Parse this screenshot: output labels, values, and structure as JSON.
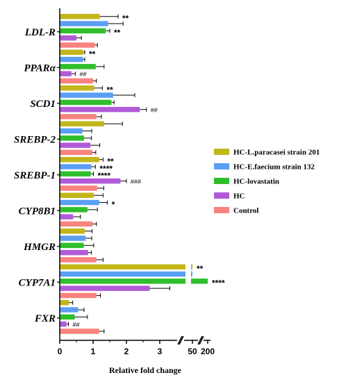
{
  "chart_data": {
    "type": "bar",
    "orientation": "horizontal",
    "xlabel": "Relative fold change",
    "x_ticks": [
      "0",
      "1",
      "2",
      "3",
      "50",
      "200"
    ],
    "x_axis_break": "between 3 and 50, and between 50 and 200",
    "legend_position": "right",
    "categories": [
      "LDL-R",
      "PPARα",
      "SCD1",
      "SREBP-2",
      "SREBP-1",
      "CYP8B1",
      "HMGR",
      "CYP7A1",
      "FXR"
    ],
    "series": [
      {
        "name": "HC-L.paracasei strain 201",
        "color": "#c3b61b",
        "values": [
          1.2,
          0.7,
          1.03,
          1.33,
          1.18,
          1.02,
          0.75,
          50,
          0.27
        ],
        "errors": [
          0.55,
          0.05,
          0.25,
          0.55,
          0.12,
          0.28,
          0.22,
          0,
          0.12
        ],
        "significance": [
          "**",
          "**",
          "**",
          "",
          "**",
          "",
          "",
          "**",
          ""
        ]
      },
      {
        "name": "HC-E.faecium strain 132",
        "color": "#5b9ff3",
        "values": [
          1.45,
          0.7,
          1.6,
          0.68,
          0.95,
          1.18,
          0.78,
          50,
          0.55
        ],
        "errors": [
          0.45,
          0.05,
          0.65,
          0.28,
          0.12,
          0.25,
          0.18,
          0,
          0.18
        ],
        "significance": [
          "",
          "",
          "",
          "",
          "****",
          "*",
          "",
          "",
          ""
        ]
      },
      {
        "name": "HC-lovastatin",
        "color": "#2fbf2c",
        "values": [
          1.38,
          1.08,
          1.55,
          0.73,
          0.93,
          0.83,
          0.72,
          200,
          0.45
        ],
        "errors": [
          0.12,
          0.25,
          0.08,
          0.22,
          0.08,
          0.3,
          0.3,
          0,
          0.38
        ],
        "significance": [
          "**",
          "",
          "",
          "",
          "****",
          "",
          "",
          "****",
          ""
        ]
      },
      {
        "name": "HC",
        "color": "#b25bd9",
        "values": [
          0.5,
          0.35,
          2.4,
          0.92,
          1.82,
          0.4,
          0.85,
          2.7,
          0.2
        ],
        "errors": [
          0.15,
          0.12,
          0.2,
          0.28,
          0.18,
          0.22,
          0.1,
          0.6,
          0.06
        ],
        "significance": [
          "",
          "##",
          "##",
          "",
          "###",
          "",
          "",
          "",
          "##"
        ]
      },
      {
        "name": "Control",
        "color": "#f9837f",
        "values": [
          1.05,
          1.0,
          1.1,
          0.98,
          1.12,
          0.98,
          1.1,
          1.1,
          1.18
        ],
        "errors": [
          0.08,
          0.1,
          0.15,
          0.1,
          0.2,
          0.12,
          0.2,
          0.12,
          0.15
        ],
        "significance": [
          "",
          "",
          "",
          "",
          "",
          "",
          "",
          "",
          ""
        ]
      }
    ]
  }
}
